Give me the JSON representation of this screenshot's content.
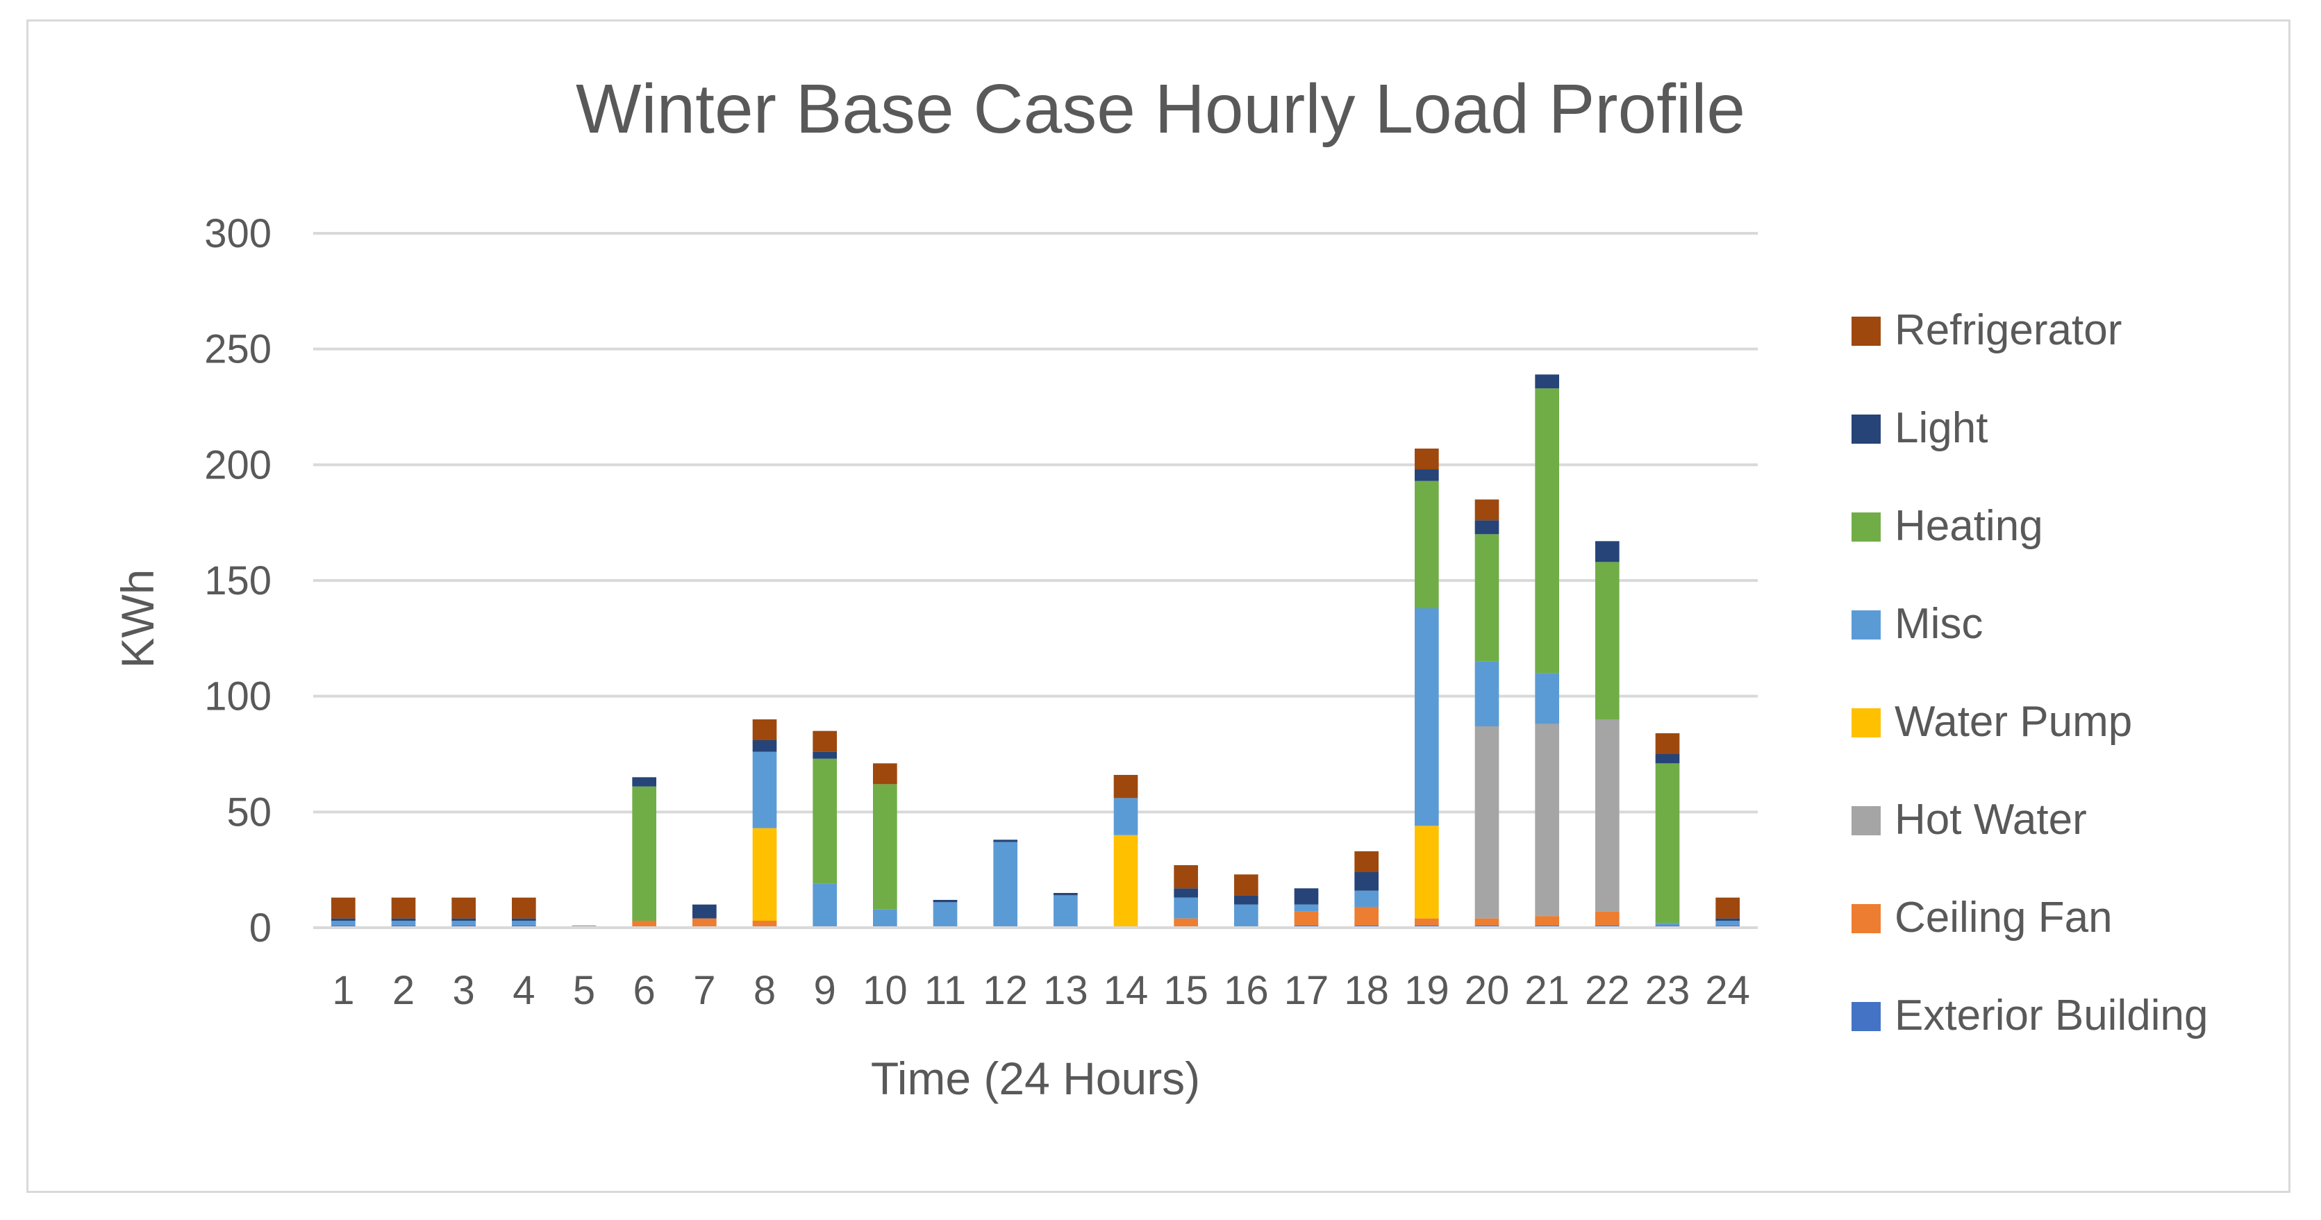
{
  "chart_data": {
    "type": "bar",
    "stacked": true,
    "title": "Winter Base Case Hourly Load Profile",
    "xlabel": "Time (24 Hours)",
    "ylabel": "KWh",
    "ylim": [
      0,
      300
    ],
    "yticks": [
      0,
      50,
      100,
      150,
      200,
      250,
      300
    ],
    "grid": true,
    "legend_position": "right",
    "categories": [
      "1",
      "2",
      "3",
      "4",
      "5",
      "6",
      "7",
      "8",
      "9",
      "10",
      "11",
      "12",
      "13",
      "14",
      "15",
      "16",
      "17",
      "18",
      "19",
      "20",
      "21",
      "22",
      "23",
      "24"
    ],
    "series": [
      {
        "name": "Exterior Building",
        "color": "#4472C4",
        "values": [
          1,
          1,
          1,
          1,
          0,
          0,
          0,
          0,
          0,
          0,
          0,
          0,
          0,
          0,
          0,
          0,
          1,
          1,
          1,
          1,
          1,
          1,
          1,
          1
        ]
      },
      {
        "name": "Ceiling Fan",
        "color": "#ED7D31",
        "values": [
          0,
          0,
          0,
          0,
          0,
          3,
          4,
          3,
          0,
          0,
          0,
          0,
          0,
          0,
          4,
          0,
          6,
          8,
          3,
          3,
          4,
          6,
          0,
          0
        ]
      },
      {
        "name": "Hot Water",
        "color": "#A5A5A5",
        "values": [
          0,
          0,
          0,
          0,
          1,
          0,
          0,
          0,
          0,
          0,
          0,
          0,
          0,
          0,
          0,
          0,
          0,
          0,
          0,
          83,
          83,
          83,
          0,
          0
        ]
      },
      {
        "name": "Water Pump",
        "color": "#FFC000",
        "values": [
          0,
          0,
          0,
          0,
          0,
          0,
          0,
          40,
          0,
          0,
          0,
          0,
          0,
          40,
          0,
          0,
          0,
          0,
          40,
          0,
          0,
          0,
          0,
          0
        ]
      },
      {
        "name": "Misc",
        "color": "#5B9BD5",
        "values": [
          2,
          2,
          2,
          2,
          0,
          0,
          0,
          33,
          19,
          8,
          11,
          37,
          14,
          16,
          9,
          10,
          3,
          7,
          94,
          28,
          22,
          0,
          1,
          2
        ]
      },
      {
        "name": "Heating",
        "color": "#70AD47",
        "values": [
          0,
          0,
          0,
          0,
          0,
          58,
          0,
          0,
          54,
          54,
          0,
          0,
          0,
          0,
          0,
          0,
          0,
          0,
          55,
          55,
          123,
          68,
          69,
          0
        ]
      },
      {
        "name": "Light",
        "color": "#264478",
        "values": [
          1,
          1,
          1,
          1,
          0,
          4,
          6,
          5,
          3,
          0,
          1,
          1,
          1,
          0,
          4,
          4,
          7,
          8,
          5,
          6,
          6,
          9,
          4,
          1
        ]
      },
      {
        "name": "Refrigerator",
        "color": "#9E480E",
        "values": [
          9,
          9,
          9,
          9,
          0,
          0,
          0,
          9,
          9,
          9,
          0,
          0,
          0,
          10,
          10,
          9,
          0,
          9,
          9,
          9,
          0,
          0,
          9,
          9
        ]
      }
    ]
  }
}
